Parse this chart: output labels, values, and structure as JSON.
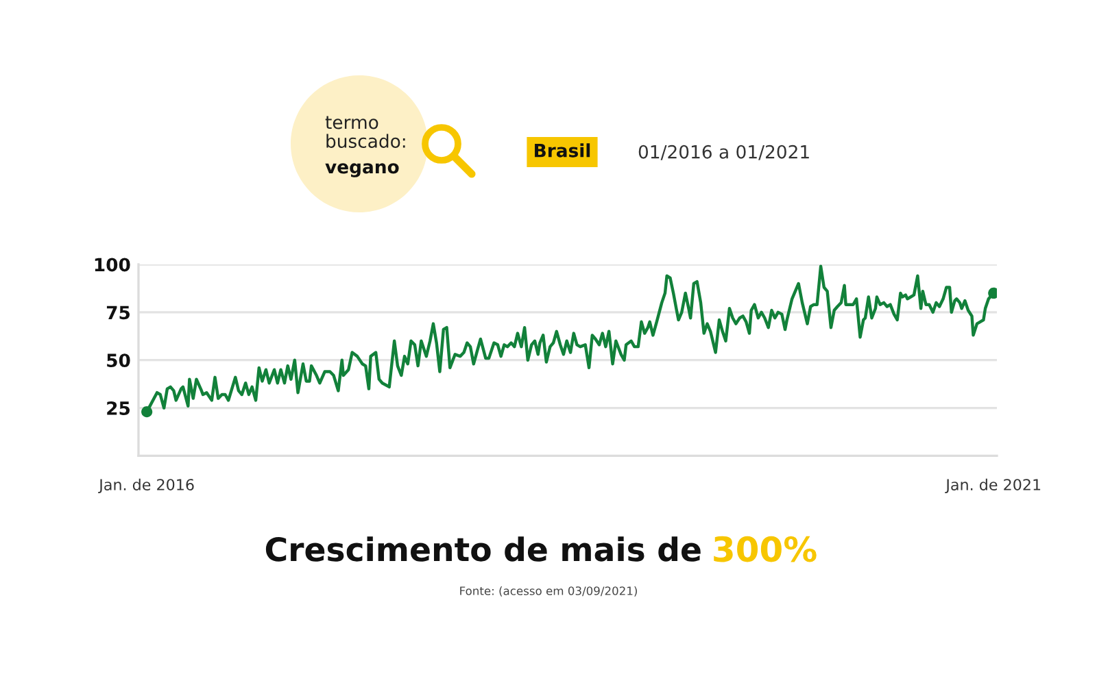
{
  "chart_data": {
    "type": "line",
    "x": [
      "2016-01-01",
      "2016-01-23",
      "2016-01-30",
      "2016-02-07",
      "2016-02-14",
      "2016-02-21",
      "2016-02-28",
      "2016-03-04",
      "2016-03-15",
      "2016-03-19",
      "2016-03-30",
      "2016-04-02",
      "2016-04-10",
      "2016-04-17",
      "2016-04-28",
      "2016-05-01",
      "2016-05-09",
      "2016-05-20",
      "2016-05-27",
      "2016-06-03",
      "2016-06-11",
      "2016-06-18",
      "2016-06-25",
      "2016-07-10",
      "2016-07-17",
      "2016-07-24",
      "2016-08-01",
      "2016-08-08",
      "2016-08-15",
      "2016-08-23",
      "2016-08-30",
      "2016-09-06",
      "2016-09-14",
      "2016-09-21",
      "2016-10-02",
      "2016-10-09",
      "2016-10-16",
      "2016-10-24",
      "2016-10-31",
      "2016-11-07",
      "2016-11-15",
      "2016-11-22",
      "2016-12-03",
      "2016-12-10",
      "2016-12-17",
      "2016-12-21",
      "2017-01-01",
      "2017-01-08",
      "2017-01-19",
      "2017-01-30",
      "2017-02-07",
      "2017-02-17",
      "2017-02-25",
      "2017-02-28",
      "2017-03-11",
      "2017-03-19",
      "2017-03-30",
      "2017-04-10",
      "2017-04-17",
      "2017-04-24",
      "2017-04-28",
      "2017-05-09",
      "2017-05-16",
      "2017-05-23",
      "2017-06-07",
      "2017-06-18",
      "2017-06-25",
      "2017-07-03",
      "2017-07-10",
      "2017-07-17",
      "2017-07-24",
      "2017-08-01",
      "2017-08-08",
      "2017-08-15",
      "2017-08-26",
      "2017-09-03",
      "2017-09-10",
      "2017-09-17",
      "2017-09-24",
      "2017-10-02",
      "2017-10-09",
      "2017-10-16",
      "2017-10-27",
      "2017-11-07",
      "2017-11-15",
      "2017-11-22",
      "2017-11-29",
      "2017-12-06",
      "2017-12-14",
      "2017-12-21",
      "2018-01-01",
      "2018-01-08",
      "2018-01-19",
      "2018-01-27",
      "2018-02-03",
      "2018-02-10",
      "2018-02-17",
      "2018-02-25",
      "2018-03-04",
      "2018-03-11",
      "2018-03-19",
      "2018-03-26",
      "2018-04-02",
      "2018-04-10",
      "2018-04-17",
      "2018-04-24",
      "2018-04-28",
      "2018-05-05",
      "2018-05-12",
      "2018-05-20",
      "2018-05-27",
      "2018-06-03",
      "2018-06-11",
      "2018-06-18",
      "2018-06-25",
      "2018-07-03",
      "2018-07-10",
      "2018-07-17",
      "2018-07-24",
      "2018-08-04",
      "2018-08-12",
      "2018-08-19",
      "2018-08-26",
      "2018-09-03",
      "2018-09-10",
      "2018-09-17",
      "2018-09-24",
      "2018-10-02",
      "2018-10-09",
      "2018-10-20",
      "2018-10-27",
      "2018-10-31",
      "2018-11-11",
      "2018-11-18",
      "2018-11-26",
      "2018-12-03",
      "2018-12-10",
      "2018-12-17",
      "2018-12-21",
      "2018-12-28",
      "2019-01-05",
      "2019-01-16",
      "2019-01-23",
      "2019-01-27",
      "2019-02-03",
      "2019-02-10",
      "2019-02-17",
      "2019-02-21",
      "2019-02-28",
      "2019-03-08",
      "2019-03-15",
      "2019-03-19",
      "2019-03-26",
      "2019-04-02",
      "2019-04-10",
      "2019-04-17",
      "2019-04-24",
      "2019-05-01",
      "2019-05-12",
      "2019-05-20",
      "2019-05-27",
      "2019-06-03",
      "2019-06-11",
      "2019-06-18",
      "2019-06-25",
      "2019-07-03",
      "2019-07-10",
      "2019-07-17",
      "2019-07-24",
      "2019-07-28",
      "2019-08-04",
      "2019-08-12",
      "2019-08-19",
      "2019-08-26",
      "2019-09-03",
      "2019-09-10",
      "2019-09-17",
      "2019-09-24",
      "2019-10-02",
      "2019-10-09",
      "2019-10-13",
      "2019-10-24",
      "2019-10-31",
      "2019-11-07",
      "2019-11-15",
      "2019-11-18",
      "2019-11-26",
      "2019-12-03",
      "2019-12-10",
      "2019-12-17",
      "2019-12-25",
      "2020-01-01",
      "2020-01-08",
      "2020-01-16",
      "2020-01-23",
      "2020-01-30",
      "2020-02-07",
      "2020-02-14",
      "2020-02-17",
      "2020-02-25",
      "2020-03-04",
      "2020-03-11",
      "2020-03-19",
      "2020-03-26",
      "2020-03-30",
      "2020-04-06",
      "2020-04-13",
      "2020-04-21",
      "2020-04-24",
      "2020-05-01",
      "2020-05-09",
      "2020-05-16",
      "2020-05-23",
      "2020-05-31",
      "2020-06-07",
      "2020-06-14",
      "2020-06-18",
      "2020-06-25",
      "2020-06-29",
      "2020-07-06",
      "2020-07-13",
      "2020-07-21",
      "2020-07-28",
      "2020-08-01",
      "2020-08-08",
      "2020-08-15",
      "2020-08-23",
      "2020-08-30",
      "2020-09-06",
      "2020-09-14",
      "2020-09-21",
      "2020-09-28",
      "2020-10-02",
      "2020-10-09",
      "2020-10-13",
      "2020-10-20",
      "2020-10-24",
      "2020-10-31",
      "2020-11-07",
      "2020-11-15",
      "2020-11-18",
      "2020-11-26",
      "2020-12-03",
      "2020-12-10",
      "2020-12-14",
      "2020-12-21",
      "2021-01-01"
    ],
    "series": [
      {
        "color": "#12813a",
        "values": [
          23,
          33,
          32,
          25,
          35,
          36,
          34,
          29,
          35,
          36,
          26,
          40,
          30,
          40,
          34,
          32,
          33,
          29,
          41,
          30,
          32,
          32,
          29,
          41,
          34,
          32,
          38,
          32,
          36,
          29,
          46,
          39,
          45,
          38,
          45,
          38,
          45,
          38,
          47,
          40,
          50,
          33,
          48,
          39,
          39,
          47,
          42,
          38,
          44,
          44,
          42,
          34,
          50,
          42,
          45,
          54,
          52,
          48,
          47,
          35,
          52,
          54,
          40,
          38,
          36,
          60,
          47,
          42,
          52,
          48,
          60,
          58,
          47,
          60,
          52,
          60,
          69,
          59,
          44,
          66,
          67,
          46,
          53,
          52,
          54,
          59,
          57,
          48,
          55,
          61,
          51,
          51,
          59,
          58,
          52,
          58,
          57,
          59,
          57,
          64,
          57,
          67,
          50,
          58,
          60,
          53,
          59,
          63,
          49,
          57,
          59,
          65,
          58,
          53,
          60,
          54,
          64,
          58,
          57,
          58,
          46,
          63,
          61,
          58,
          64,
          57,
          65,
          48,
          60,
          53,
          50,
          58,
          60,
          57,
          57,
          70,
          64,
          67,
          70,
          63,
          70,
          80,
          85,
          94,
          93,
          85,
          76,
          71,
          75,
          85,
          77,
          72,
          90,
          91,
          80,
          64,
          69,
          65,
          54,
          71,
          65,
          60,
          77,
          72,
          69,
          72,
          73,
          70,
          64,
          76,
          79,
          72,
          75,
          72,
          67,
          76,
          72,
          75,
          74,
          66,
          71,
          82,
          86,
          90,
          80,
          77,
          69,
          78,
          79,
          79,
          99,
          88,
          86,
          67,
          76,
          78,
          80,
          89,
          79,
          79,
          79,
          82,
          62,
          71,
          72,
          83,
          72,
          77,
          83,
          79,
          80,
          78,
          79,
          74,
          71,
          85,
          83,
          84,
          82,
          83,
          84,
          94,
          77,
          86,
          79,
          79,
          75,
          80,
          78,
          82,
          88,
          88,
          75,
          81,
          82,
          80,
          77,
          81,
          76,
          73,
          63,
          69,
          70,
          71,
          77,
          82,
          85
        ]
      },
      {
        "type": "scatter",
        "marker": "circle",
        "color": "#12813a",
        "x": [
          "2016-01-01",
          "2021-01-01"
        ],
        "values": [
          23,
          85
        ]
      }
    ],
    "xlim": [
      "2015-12-14",
      "2021-01-08"
    ],
    "xticks": [
      {
        "value": "2016-01-01",
        "label": "Jan. de 2016"
      },
      {
        "value": "2021-01-01",
        "label": "Jan. de 2021"
      }
    ],
    "ylim": [
      0,
      100
    ],
    "yticks": [
      25,
      50,
      75,
      100
    ],
    "grid": "y",
    "annotations": [
      "termo\nbuscado:",
      "vegano",
      "Brasil",
      "01/2016 a 01/2021",
      "Crescimento de mais de",
      "300%",
      "Fonte: (acesso em 03/09/2021)"
    ]
  }
}
